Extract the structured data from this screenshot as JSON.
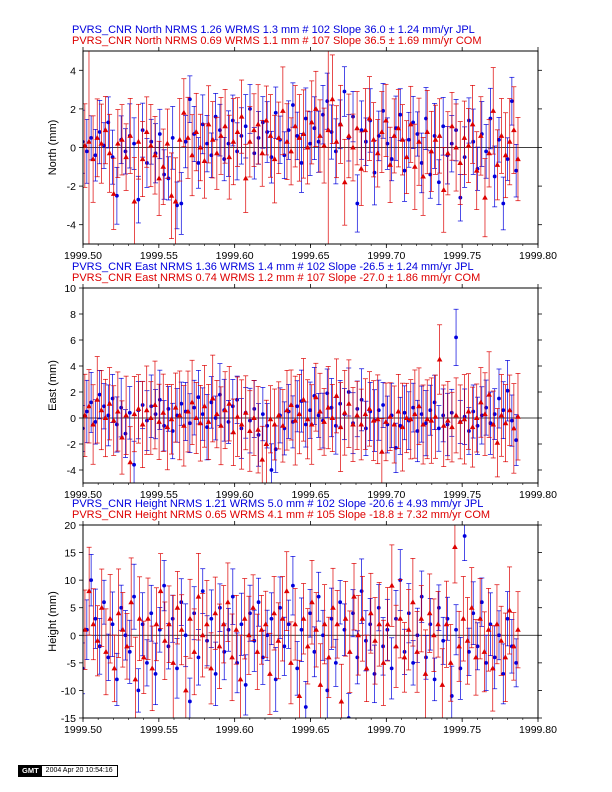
{
  "colors": {
    "jpl": "#0000dd",
    "com": "#dd0000",
    "axis": "#000000"
  },
  "chart_data": [
    {
      "type": "scatter",
      "ylabel": "North (mm)",
      "xlim": [
        1999.5,
        1999.8
      ],
      "ylim": [
        -5,
        5
      ],
      "xticks": [
        1999.5,
        1999.55,
        1999.6,
        1999.65,
        1999.7,
        1999.75,
        1999.8
      ],
      "xtick_labels": [
        "1999.50",
        "1999.55",
        "1999.60",
        "1999.65",
        "1999.70",
        "1999.75",
        "1999.80"
      ],
      "yticks": [
        -4,
        -2,
        0,
        2,
        4
      ],
      "ytick_labels": [
        "-4",
        "-2",
        "0",
        "2",
        "4"
      ],
      "title_lines": [
        "PVRS_CNR North NRMS 1.26 WRMS  1.3 mm # 102 Slope   36.0 ±  1.24 mm/yr JPL",
        "PVRS_CNR North NRMS 0.69 WRMS  1.1 mm # 107 Slope   36.5 ±  1.69 mm/yr COM"
      ],
      "series": [
        {
          "label": "JPL",
          "marker": "circle",
          "x_start": 1999.4997,
          "x_end": 1999.7856,
          "y": [
            0.3,
            -0.2,
            0.5,
            -0.4,
            0.8,
            0.1,
            1.3,
            -0.5,
            -2.5,
            0.4,
            -0.2,
            0.6,
            0.2,
            -2.7,
            0.9,
            -0.8,
            0.3,
            -0.3,
            0.7,
            -1.4,
            -1.6,
            0.5,
            -3.0,
            -2.9,
            0.3,
            2.5,
            0.7,
            -0.8,
            1.2,
            0.2,
            -0.4,
            1.6,
            0.9,
            -0.6,
            0.2,
            1.4,
            -0.2,
            0.6,
            1.1,
            2.0,
            -0.3,
            0.5,
            1.3,
            0.8,
            -0.5,
            1.8,
            0.4,
            -0.4,
            0.9,
            2.2,
            0.6,
            -0.8,
            1.5,
            0.2,
            1.0,
            0.3,
            1.7,
            2.4,
            0.8,
            -0.2,
            1.2,
            2.9,
            0.5,
            1.6,
            -2.9,
            0.9,
            0.3,
            1.4,
            -1.3,
            0.6,
            1.9,
            0.2,
            -0.6,
            1.0,
            1.7,
            -1.2,
            0.4,
            1.3,
            0.7,
            -0.8,
            1.5,
            -1.4,
            0.6,
            -1.8,
            1.1,
            -0.4,
            0.2,
            0.9,
            -2.6,
            -0.5,
            1.4,
            0.3,
            -1.1,
            0.7,
            -0.2,
            1.5,
            -1.5,
            0.4,
            -2.9,
            -0.6,
            2.4,
            -1.2
          ]
        },
        {
          "label": "COM",
          "marker": "triangle",
          "x_start": 1999.4985,
          "x_end": 1999.7868,
          "y": [
            -1.2,
            0.1,
            0.3,
            -0.6,
            0.5,
            0.2,
            0.9,
            -0.3,
            -2.4,
            0.2,
            0.4,
            -0.5,
            0.6,
            -2.8,
            0.3,
            -0.6,
            0.8,
            0.1,
            -0.4,
            -1.6,
            -1.0,
            0.2,
            -2.5,
            -2.8,
            0.4,
            1.8,
            0.5,
            -0.4,
            0.8,
            0.0,
            -0.7,
            1.2,
            0.4,
            -0.3,
            0.6,
            1.1,
            -0.5,
            0.3,
            0.8,
            1.6,
            -1.6,
            0.3,
            0.9,
            1.2,
            -0.3,
            1.4,
            0.6,
            -0.6,
            0.5,
            1.9,
            0.3,
            -0.2,
            1.1,
            0.5,
            0.7,
            0.0,
            1.3,
            2.0,
            0.6,
            0.1,
            0.9,
            2.5,
            0.3,
            1.2,
            -1.8,
            0.6,
            0.0,
            1.0,
            -1.1,
            0.9,
            1.5,
            0.4,
            -0.3,
            0.8,
            1.4,
            -0.9,
            0.6,
            1.0,
            0.4,
            -0.5,
            1.2,
            -1.0,
            0.3,
            -1.5,
            0.8,
            -0.2,
            0.4,
            0.6,
            -2.2,
            -0.3,
            1.1,
            0.0,
            -0.8,
            0.5,
            0.1,
            1.2,
            -1.2,
            0.6,
            -2.6,
            -0.3,
            1.9,
            -0.9,
            0.6,
            -0.4,
            0.3,
            0.9,
            -0.6
          ]
        }
      ]
    },
    {
      "type": "scatter",
      "ylabel": "East (mm)",
      "xlim": [
        1999.5,
        1999.8
      ],
      "ylim": [
        -5,
        10
      ],
      "xticks": [
        1999.5,
        1999.55,
        1999.6,
        1999.65,
        1999.7,
        1999.75,
        1999.8
      ],
      "xtick_labels": [
        "1999.50",
        "1999.55",
        "1999.60",
        "1999.65",
        "1999.70",
        "1999.75",
        "1999.80"
      ],
      "yticks": [
        -4,
        -2,
        0,
        2,
        4,
        6,
        8,
        10
      ],
      "ytick_labels": [
        "-4",
        "-2",
        "0",
        "2",
        "4",
        "6",
        "8",
        "10"
      ],
      "title_lines": [
        "PVRS_CNR East NRMS 1.36 WRMS  1.4 mm # 102 Slope  -26.5 ±  1.24 mm/yr JPL",
        "PVRS_CNR East NRMS 0.74 WRMS  1.2 mm # 107 Slope  -27.0 ±  1.86 mm/yr COM"
      ],
      "series": [
        {
          "label": "JPL",
          "marker": "circle",
          "x_start": 1999.4997,
          "x_end": 1999.7856,
          "y": [
            -0.8,
            0.5,
            1.2,
            -0.3,
            1.8,
            0.9,
            0.2,
            1.5,
            -0.5,
            0.8,
            -1.2,
            0.4,
            -3.6,
            0.6,
            1.0,
            -0.2,
            0.9,
            0.3,
            1.4,
            -0.6,
            0.7,
            -1.0,
            0.2,
            1.1,
            0.5,
            -0.4,
            0.8,
            1.6,
            0.3,
            -0.7,
            1.2,
            0.0,
            1.8,
            0.6,
            -0.3,
            0.9,
            1.4,
            -0.8,
            0.4,
            -0.2,
            0.7,
            -1.3,
            0.3,
            -0.6,
            -4.0,
            -2.4,
            0.2,
            -0.8,
            0.5,
            -0.3,
            0.9,
            1.3,
            -0.5,
            0.6,
            1.7,
            0.2,
            -0.2,
            1.9,
            0.8,
            -0.6,
            1.1,
            0.3,
            2.0,
            -0.4,
            0.7,
            1.4,
            -0.8,
            0.5,
            -0.2,
            0.6,
            1.0,
            -0.5,
            0.2,
            -2.3,
            -0.6,
            0.4,
            -0.2,
            0.8,
            -1.0,
            0.3,
            -0.4,
            0.6,
            1.2,
            -0.8,
            0.2,
            -0.5,
            0.4,
            6.2,
            -0.3,
            0.1,
            -1.0,
            0.5,
            -0.6,
            0.2,
            0.8,
            -0.4,
            0.3,
            1.5,
            0.6,
            2.1,
            -0.2,
            -1.7
          ]
        },
        {
          "label": "COM",
          "marker": "triangle",
          "x_start": 1999.4985,
          "x_end": 1999.7868,
          "y": [
            -1.0,
            0.2,
            0.9,
            -0.5,
            1.4,
            0.6,
            0.0,
            1.1,
            -0.2,
            0.5,
            -1.5,
            0.2,
            -3.4,
            0.3,
            0.7,
            -0.5,
            0.6,
            0.0,
            1.0,
            -0.3,
            0.4,
            -0.7,
            -0.1,
            0.8,
            0.2,
            -0.6,
            0.5,
            1.2,
            0.0,
            -0.4,
            0.9,
            -0.3,
            1.5,
            0.3,
            -0.6,
            0.6,
            1.1,
            -1.1,
            0.1,
            -0.5,
            0.4,
            -1.0,
            0.0,
            -0.9,
            -3.2,
            -2.0,
            -0.1,
            -0.5,
            0.2,
            -0.6,
            0.6,
            1.0,
            -0.2,
            0.3,
            1.4,
            -0.1,
            -0.5,
            1.6,
            0.5,
            -0.3,
            0.8,
            0.0,
            1.7,
            -0.7,
            0.4,
            1.1,
            -0.5,
            0.2,
            -0.5,
            0.3,
            0.7,
            -0.2,
            -0.1,
            -2.6,
            -0.3,
            0.1,
            -0.5,
            0.5,
            -0.7,
            0.0,
            -0.1,
            0.3,
            0.9,
            -0.5,
            -0.1,
            -0.2,
            0.1,
            4.5,
            -0.6,
            -0.2,
            -0.7,
            0.2,
            -0.3,
            -0.1,
            0.5,
            -0.7,
            0.0,
            1.2,
            0.3,
            1.8,
            -0.5,
            -1.9,
            0.2,
            -0.4,
            0.6,
            -0.8,
            0.1
          ]
        }
      ]
    },
    {
      "type": "scatter",
      "ylabel": "Height (mm)",
      "xlim": [
        1999.5,
        1999.8
      ],
      "ylim": [
        -15,
        20
      ],
      "xticks": [
        1999.5,
        1999.55,
        1999.6,
        1999.65,
        1999.7,
        1999.75,
        1999.8
      ],
      "xtick_labels": [
        "1999.50",
        "1999.55",
        "1999.60",
        "1999.65",
        "1999.70",
        "1999.75",
        "1999.80"
      ],
      "yticks": [
        -15,
        -10,
        -5,
        0,
        5,
        10,
        15,
        20
      ],
      "ytick_labels": [
        "-15",
        "-10",
        "-5",
        "0",
        "5",
        "10",
        "15",
        "20"
      ],
      "title_lines": [
        "PVRS_CNR Height NRMS 1.21 WRMS  5.0 mm # 102 Slope  -20.6 ±  4.93 mm/yr JPL",
        "PVRS_CNR Height NRMS 0.65 WRMS  4.1 mm # 105 Slope  -18.8 ±  7.32 mm/yr COM"
      ],
      "series": [
        {
          "label": "JPL",
          "marker": "circle",
          "x_start": 1999.4997,
          "x_end": 1999.7856,
          "y": [
            -6.0,
            1.0,
            10.0,
            3.0,
            -2.0,
            6.0,
            -4.0,
            2.0,
            -8.0,
            5.0,
            0.0,
            -3.0,
            7.0,
            -10.0,
            2.0,
            -5.0,
            4.0,
            -7.0,
            1.0,
            9.0,
            -2.0,
            3.0,
            -6.0,
            6.0,
            0.0,
            -12.0,
            4.0,
            -4.0,
            8.0,
            -1.0,
            3.0,
            -7.0,
            5.0,
            -3.0,
            1.0,
            7.0,
            -5.0,
            2.0,
            -9.0,
            4.0,
            -1.0,
            6.0,
            -4.0,
            0.0,
            3.0,
            -8.0,
            5.0,
            -2.0,
            2.0,
            9.0,
            -6.0,
            1.0,
            -13.0,
            4.0,
            -3.0,
            7.0,
            0.0,
            -10.0,
            3.0,
            -5.0,
            6.0,
            1.0,
            -15.0,
            4.0,
            -4.0,
            8.0,
            -1.0,
            2.0,
            -7.0,
            5.0,
            -2.0,
            1.0,
            -6.0,
            3.0,
            10.0,
            -3.0,
            4.0,
            -5.0,
            0.0,
            7.0,
            -4.0,
            2.0,
            -8.0,
            5.0,
            -1.0,
            3.0,
            -11.0,
            1.0,
            -6.0,
            18.0,
            -3.0,
            4.0,
            -2.0,
            6.0,
            -5.0,
            2.0,
            -4.0,
            0.0,
            -7.0,
            3.0,
            -2.0,
            -5.0
          ]
        },
        {
          "label": "COM",
          "marker": "triangle",
          "x_start": 1999.4985,
          "x_end": 1999.7868,
          "y": [
            -4.5,
            1.0,
            8.0,
            2.0,
            -1.0,
            5.0,
            -3.0,
            3.0,
            -6.0,
            4.0,
            1.0,
            -2.0,
            6.0,
            -8.0,
            3.0,
            -4.0,
            3.0,
            -6.0,
            2.0,
            8.0,
            -1.0,
            2.0,
            -5.0,
            5.0,
            1.0,
            -10.0,
            3.0,
            -3.0,
            7.0,
            0.0,
            2.0,
            -6.0,
            4.0,
            -2.0,
            2.0,
            6.0,
            -4.0,
            1.0,
            -8.0,
            3.0,
            0.0,
            5.0,
            -3.0,
            1.0,
            2.0,
            -7.0,
            4.0,
            -1.0,
            3.0,
            8.0,
            -5.0,
            2.0,
            -11.0,
            3.0,
            -2.0,
            6.0,
            1.0,
            -9.0,
            2.0,
            -4.0,
            5.0,
            2.0,
            -12.0,
            3.0,
            -3.0,
            7.0,
            0.0,
            3.0,
            -6.0,
            4.0,
            -1.0,
            2.0,
            -5.0,
            2.0,
            9.0,
            -2.0,
            3.0,
            -4.0,
            1.0,
            6.0,
            -3.0,
            3.0,
            -7.0,
            4.0,
            0.0,
            2.0,
            -9.0,
            2.0,
            -5.0,
            16.0,
            -2.0,
            3.0,
            -1.0,
            5.0,
            -4.0,
            3.0,
            -3.0,
            1.0,
            -6.0,
            2.0,
            -1.0,
            -4.0,
            4.5,
            -2.0,
            1.0
          ]
        }
      ]
    }
  ],
  "footer": {
    "logo": "GMT",
    "date": "2004 Apr 20 10:54:16"
  }
}
